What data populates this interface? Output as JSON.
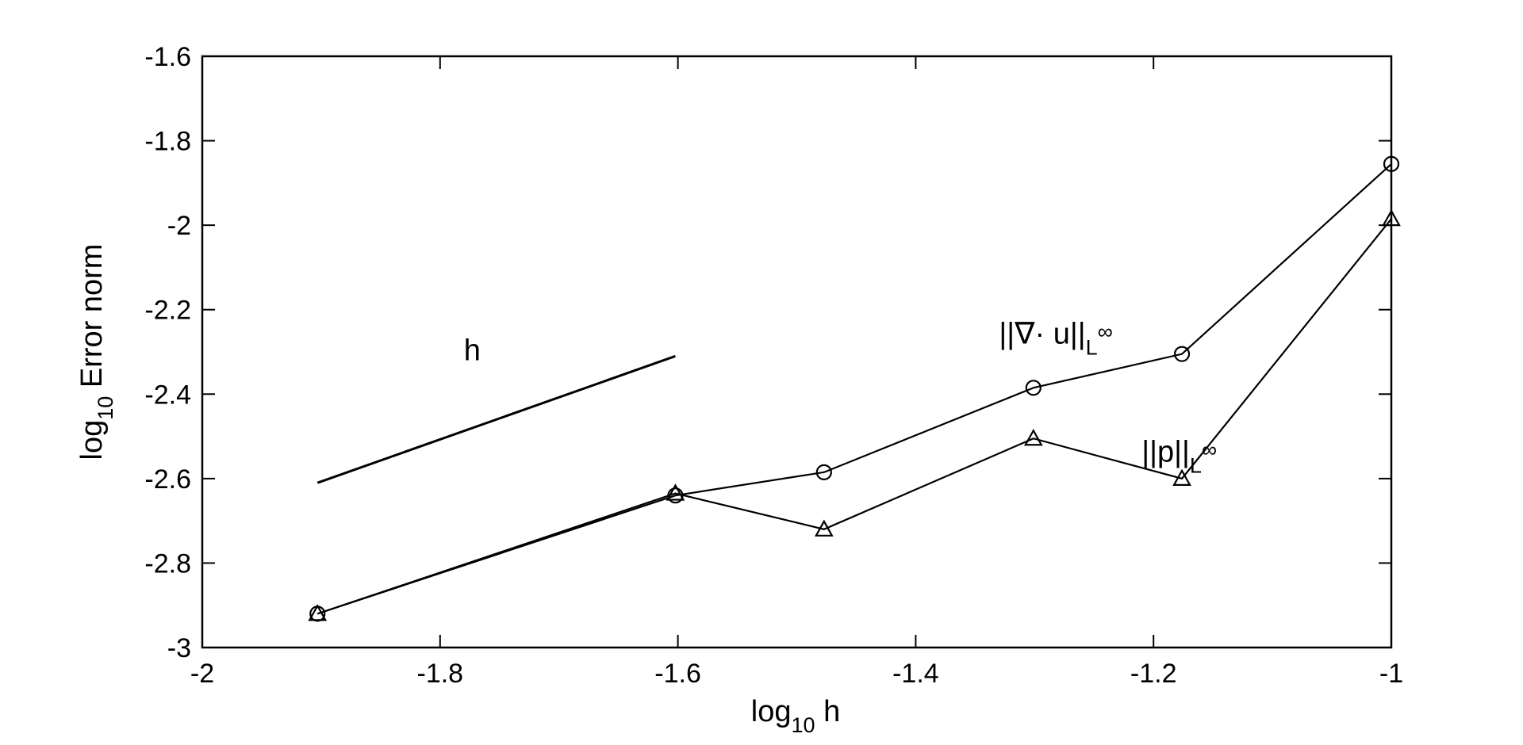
{
  "chart_data": {
    "type": "line",
    "xlabel": "log",
    "xlabel_sub": "10",
    "xlabel_tail": " h",
    "ylabel": "log",
    "ylabel_sub": "10",
    "ylabel_tail": " Error norm",
    "xlim": [
      -2,
      -1
    ],
    "ylim": [
      -3,
      -1.6
    ],
    "xticks": [
      -2,
      -1.8,
      -1.6,
      -1.4,
      -1.2,
      -1
    ],
    "xtick_labels": [
      "-2",
      "-1.8",
      "-1.6",
      "-1.4",
      "-1.2",
      "-1"
    ],
    "yticks": [
      -1.6,
      -1.8,
      -2,
      -2.2,
      -2.4,
      -2.6,
      -2.8,
      -3
    ],
    "ytick_labels": [
      "-1.6",
      "-1.8",
      "-2",
      "-2.2",
      "-2.4",
      "-2.6",
      "-2.8",
      "-3"
    ],
    "grid": false,
    "series": [
      {
        "name": "||∇· u||L∞",
        "marker": "circle",
        "x": [
          -1.9031,
          -1.6021,
          -1.4771,
          -1.301,
          -1.1761,
          -1.0
        ],
        "y": [
          -2.92,
          -2.64,
          -2.585,
          -2.385,
          -2.305,
          -1.855
        ]
      },
      {
        "name": "||p||L∞",
        "marker": "triangle",
        "x": [
          -1.9031,
          -1.6021,
          -1.4771,
          -1.301,
          -1.1761,
          -1.0
        ],
        "y": [
          -2.92,
          -2.635,
          -2.72,
          -2.505,
          -2.6,
          -1.985
        ]
      },
      {
        "name": "h",
        "marker": "none",
        "x": [
          -1.9031,
          -1.6021
        ],
        "y": [
          -2.61,
          -2.31
        ]
      }
    ],
    "annotations": [
      {
        "text": "||∇· u||",
        "sub": "L",
        "sup": "∞",
        "x": -1.33,
        "y": -2.28
      },
      {
        "text": "||p||",
        "sub": "L",
        "sup": "∞",
        "x": -1.21,
        "y": -2.56
      },
      {
        "text": "h",
        "x": -1.78,
        "y": -2.32
      }
    ]
  }
}
